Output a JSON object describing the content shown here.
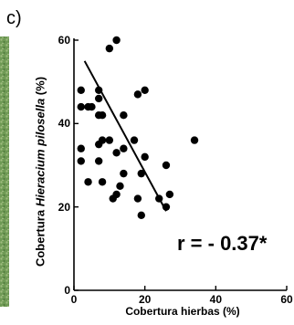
{
  "panel_label": "c)",
  "colors": {
    "photo_strip": "#6f9a55",
    "points": "#000000"
  },
  "chart_data": {
    "type": "scatter",
    "xlabel": "Cobertura hierbas  (%)",
    "ylabel_prefix": "Cobertura ",
    "ylabel_italic": "Hieracium pilosella",
    "ylabel_suffix": " (%)",
    "xlim": [
      0,
      60
    ],
    "ylim": [
      0,
      60
    ],
    "x_ticks": [
      0,
      20,
      40,
      60
    ],
    "y_ticks": [
      0,
      20,
      40,
      60
    ],
    "annotation": "r = - 0.37*",
    "points": [
      {
        "x": 2,
        "y": 48
      },
      {
        "x": 2,
        "y": 44
      },
      {
        "x": 2,
        "y": 34
      },
      {
        "x": 2,
        "y": 31
      },
      {
        "x": 4,
        "y": 44
      },
      {
        "x": 4,
        "y": 26
      },
      {
        "x": 5,
        "y": 44
      },
      {
        "x": 7,
        "y": 48
      },
      {
        "x": 7,
        "y": 46
      },
      {
        "x": 7,
        "y": 42
      },
      {
        "x": 7,
        "y": 35
      },
      {
        "x": 7,
        "y": 31
      },
      {
        "x": 8,
        "y": 42
      },
      {
        "x": 8,
        "y": 36
      },
      {
        "x": 8,
        "y": 26
      },
      {
        "x": 10,
        "y": 58
      },
      {
        "x": 10,
        "y": 36
      },
      {
        "x": 11,
        "y": 22
      },
      {
        "x": 12,
        "y": 60
      },
      {
        "x": 12,
        "y": 33
      },
      {
        "x": 12,
        "y": 23
      },
      {
        "x": 13,
        "y": 25
      },
      {
        "x": 14,
        "y": 42
      },
      {
        "x": 14,
        "y": 34
      },
      {
        "x": 14,
        "y": 28
      },
      {
        "x": 17,
        "y": 36
      },
      {
        "x": 18,
        "y": 47
      },
      {
        "x": 18,
        "y": 22
      },
      {
        "x": 19,
        "y": 28
      },
      {
        "x": 19,
        "y": 18
      },
      {
        "x": 20,
        "y": 48
      },
      {
        "x": 20,
        "y": 32
      },
      {
        "x": 24,
        "y": 22
      },
      {
        "x": 26,
        "y": 30
      },
      {
        "x": 26,
        "y": 20
      },
      {
        "x": 27,
        "y": 23
      },
      {
        "x": 34,
        "y": 36
      }
    ],
    "trend_line": {
      "x": [
        3,
        26
      ],
      "y": [
        55,
        19
      ]
    }
  }
}
